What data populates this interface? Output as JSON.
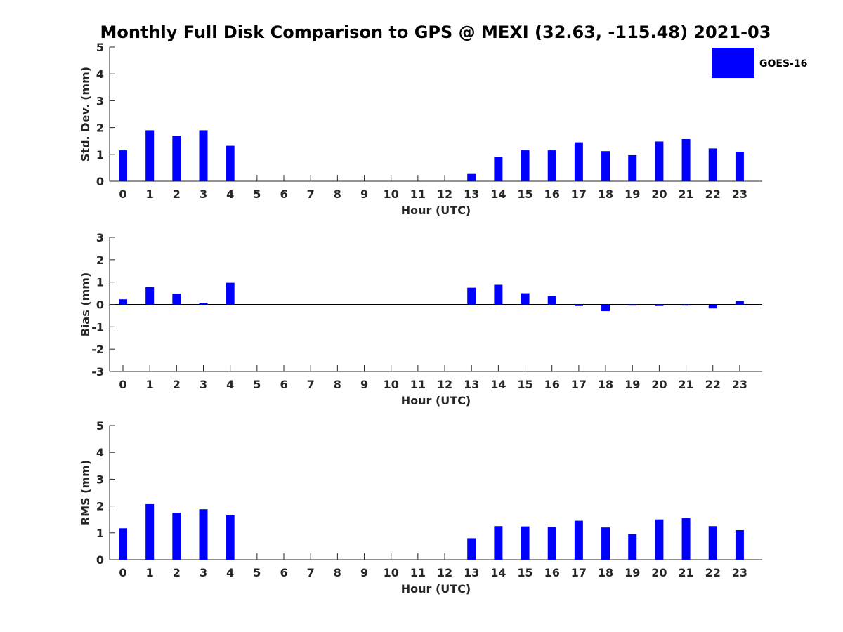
{
  "figure_title": "Monthly Full Disk Comparison to GPS @ MEXI (32.63, -115.48) 2021-03",
  "legend": {
    "label": "GOES-16",
    "color": "#0000ff"
  },
  "chart_data": [
    {
      "type": "bar",
      "ylabel": "Std. Dev. (mm)",
      "xlabel": "Hour (UTC)",
      "categories": [
        "0",
        "1",
        "2",
        "3",
        "4",
        "5",
        "6",
        "7",
        "8",
        "9",
        "10",
        "11",
        "12",
        "13",
        "14",
        "15",
        "16",
        "17",
        "18",
        "19",
        "20",
        "21",
        "22",
        "23"
      ],
      "ylim": [
        0,
        5
      ],
      "yticks": [
        "0",
        "1",
        "2",
        "3",
        "4",
        "5"
      ],
      "series": [
        {
          "name": "GOES-16",
          "color": "#0000ff",
          "values": [
            1.15,
            1.9,
            1.7,
            1.9,
            1.32,
            null,
            null,
            null,
            null,
            null,
            null,
            null,
            null,
            0.27,
            0.9,
            1.15,
            1.15,
            1.45,
            1.12,
            0.97,
            1.48,
            1.57,
            1.22,
            1.1
          ]
        }
      ]
    },
    {
      "type": "bar",
      "ylabel": "Bias (mm)",
      "xlabel": "Hour (UTC)",
      "categories": [
        "0",
        "1",
        "2",
        "3",
        "4",
        "5",
        "6",
        "7",
        "8",
        "9",
        "10",
        "11",
        "12",
        "13",
        "14",
        "15",
        "16",
        "17",
        "18",
        "19",
        "20",
        "21",
        "22",
        "23"
      ],
      "ylim": [
        -3,
        3
      ],
      "yticks": [
        "-3",
        "-2",
        "-1",
        "0",
        "1",
        "2",
        "3"
      ],
      "series": [
        {
          "name": "GOES-16",
          "color": "#0000ff",
          "values": [
            0.23,
            0.78,
            0.48,
            0.07,
            0.97,
            null,
            null,
            null,
            null,
            null,
            null,
            null,
            null,
            0.75,
            0.88,
            0.5,
            0.37,
            -0.07,
            -0.3,
            -0.05,
            -0.07,
            -0.05,
            -0.18,
            0.15
          ]
        }
      ]
    },
    {
      "type": "bar",
      "ylabel": "RMS (mm)",
      "xlabel": "Hour (UTC)",
      "categories": [
        "0",
        "1",
        "2",
        "3",
        "4",
        "5",
        "6",
        "7",
        "8",
        "9",
        "10",
        "11",
        "12",
        "13",
        "14",
        "15",
        "16",
        "17",
        "18",
        "19",
        "20",
        "21",
        "22",
        "23"
      ],
      "ylim": [
        0,
        5
      ],
      "yticks": [
        "0",
        "1",
        "2",
        "3",
        "4",
        "5"
      ],
      "series": [
        {
          "name": "GOES-16",
          "color": "#0000ff",
          "values": [
            1.17,
            2.07,
            1.75,
            1.88,
            1.65,
            null,
            null,
            null,
            null,
            null,
            null,
            null,
            null,
            0.8,
            1.25,
            1.24,
            1.22,
            1.45,
            1.2,
            0.95,
            1.5,
            1.55,
            1.25,
            1.1
          ]
        }
      ]
    }
  ]
}
